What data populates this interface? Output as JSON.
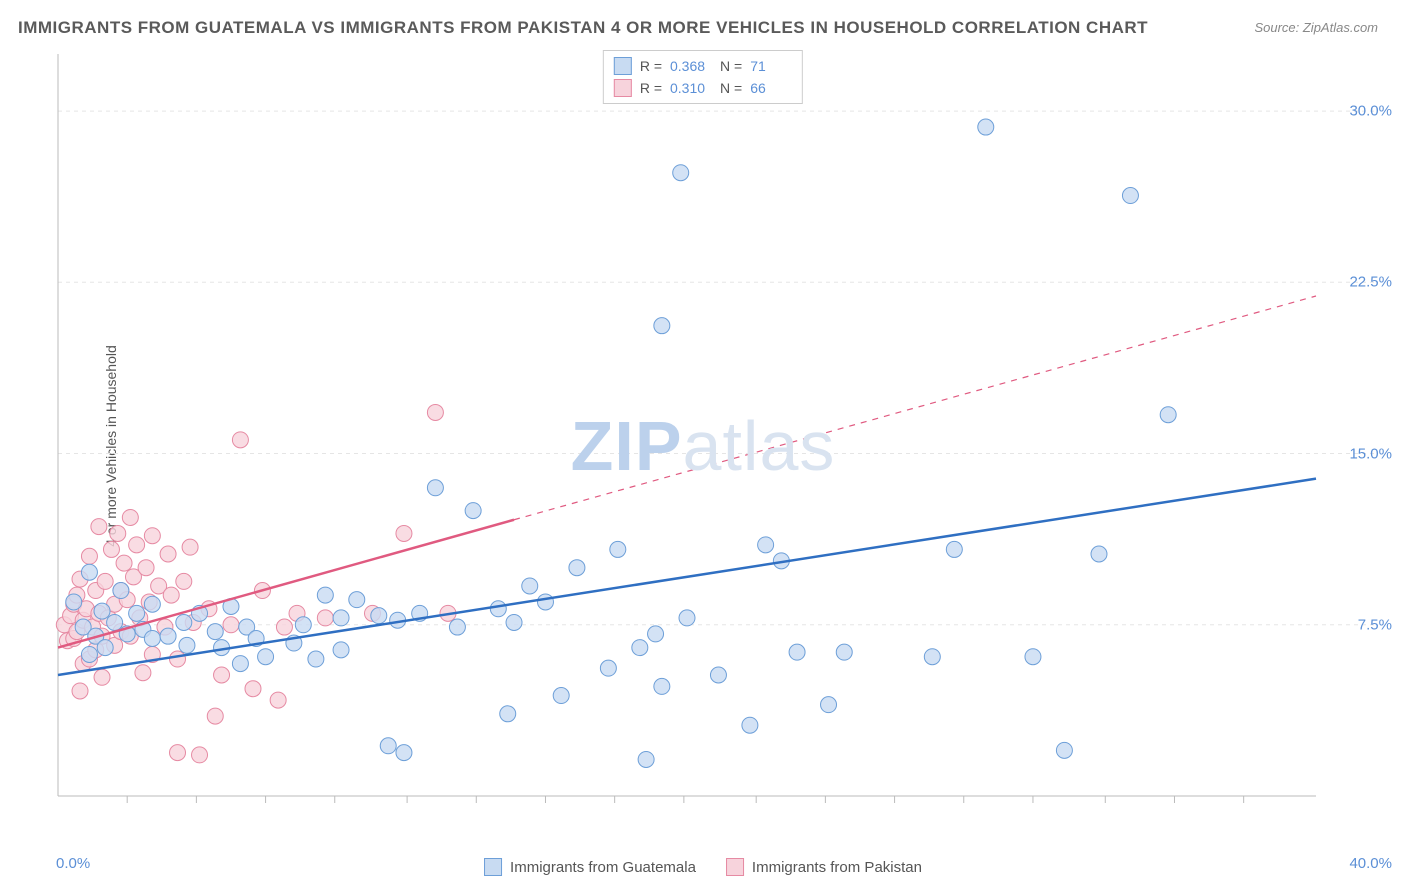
{
  "title": "IMMIGRANTS FROM GUATEMALA VS IMMIGRANTS FROM PAKISTAN 4 OR MORE VEHICLES IN HOUSEHOLD CORRELATION CHART",
  "source": "Source: ZipAtlas.com",
  "watermark_a": "ZIP",
  "watermark_b": "atlas",
  "ylabel": "4 or more Vehicles in Household",
  "chart": {
    "type": "scatter-correlation",
    "background_color": "#ffffff",
    "grid_color": "#e5e5e5",
    "axis_color": "#bbbbbb",
    "tick_color": "#bbbbbb",
    "xlim": [
      0,
      40
    ],
    "ylim": [
      0,
      32.5
    ],
    "xtick_labels": [
      {
        "v": 0.0,
        "label": "0.0%"
      },
      {
        "v": 40.0,
        "label": "40.0%"
      }
    ],
    "xticks_minor": [
      2.2,
      4.4,
      6.6,
      8.8,
      11.1,
      13.3,
      15.5,
      17.7,
      19.9,
      22.2,
      24.4,
      26.6,
      28.8,
      31.0,
      33.3,
      35.5,
      37.7
    ],
    "ytick_labels": [
      {
        "v": 7.5,
        "label": "7.5%"
      },
      {
        "v": 15.0,
        "label": "15.0%"
      },
      {
        "v": 22.5,
        "label": "22.5%"
      },
      {
        "v": 30.0,
        "label": "30.0%"
      }
    ],
    "label_color": "#5b8fd6",
    "label_fontsize": 15
  },
  "series": {
    "blue": {
      "label": "Immigrants from Guatemala",
      "R": "0.368",
      "N": "71",
      "marker_fill": "#c8dbf2",
      "marker_stroke": "#6d9fd8",
      "marker_radius": 8,
      "trend_color": "#2f6fc2",
      "trend_width": 2.5,
      "trend_dash_after_x": 40,
      "trend_start": {
        "x": 0,
        "y": 5.3
      },
      "trend_end": {
        "x": 40,
        "y": 13.9
      },
      "points": [
        [
          0.5,
          8.5
        ],
        [
          0.8,
          7.4
        ],
        [
          1.0,
          6.2
        ],
        [
          1.0,
          9.8
        ],
        [
          1.2,
          7.0
        ],
        [
          1.4,
          8.1
        ],
        [
          1.5,
          6.5
        ],
        [
          1.8,
          7.6
        ],
        [
          2.0,
          9.0
        ],
        [
          2.2,
          7.1
        ],
        [
          2.5,
          8.0
        ],
        [
          2.7,
          7.3
        ],
        [
          3.0,
          6.9
        ],
        [
          3.0,
          8.4
        ],
        [
          3.5,
          7.0
        ],
        [
          4.0,
          7.6
        ],
        [
          4.1,
          6.6
        ],
        [
          4.5,
          8.0
        ],
        [
          5.0,
          7.2
        ],
        [
          5.2,
          6.5
        ],
        [
          5.5,
          8.3
        ],
        [
          5.8,
          5.8
        ],
        [
          6.0,
          7.4
        ],
        [
          6.3,
          6.9
        ],
        [
          6.6,
          6.1
        ],
        [
          7.5,
          6.7
        ],
        [
          7.8,
          7.5
        ],
        [
          8.2,
          6.0
        ],
        [
          8.5,
          8.8
        ],
        [
          9.0,
          6.4
        ],
        [
          9.0,
          7.8
        ],
        [
          9.5,
          8.6
        ],
        [
          10.2,
          7.9
        ],
        [
          10.5,
          2.2
        ],
        [
          10.8,
          7.7
        ],
        [
          11.0,
          1.9
        ],
        [
          11.5,
          8.0
        ],
        [
          12.0,
          13.5
        ],
        [
          12.7,
          7.4
        ],
        [
          13.2,
          12.5
        ],
        [
          14.0,
          8.2
        ],
        [
          14.3,
          3.6
        ],
        [
          14.5,
          7.6
        ],
        [
          15.0,
          9.2
        ],
        [
          15.5,
          8.5
        ],
        [
          16.0,
          4.4
        ],
        [
          16.5,
          10.0
        ],
        [
          17.5,
          5.6
        ],
        [
          17.8,
          10.8
        ],
        [
          18.5,
          6.5
        ],
        [
          18.7,
          1.6
        ],
        [
          19.0,
          7.1
        ],
        [
          19.2,
          4.8
        ],
        [
          19.2,
          20.6
        ],
        [
          19.8,
          27.3
        ],
        [
          20.0,
          7.8
        ],
        [
          21.0,
          5.3
        ],
        [
          22.0,
          3.1
        ],
        [
          22.5,
          11.0
        ],
        [
          23.0,
          10.3
        ],
        [
          23.5,
          6.3
        ],
        [
          24.5,
          4.0
        ],
        [
          25.0,
          6.3
        ],
        [
          27.8,
          6.1
        ],
        [
          28.5,
          10.8
        ],
        [
          29.5,
          29.3
        ],
        [
          31.0,
          6.1
        ],
        [
          32.0,
          2.0
        ],
        [
          33.1,
          10.6
        ],
        [
          34.1,
          26.3
        ],
        [
          35.3,
          16.7
        ]
      ]
    },
    "pink": {
      "label": "Immigrants from Pakistan",
      "R": "0.310",
      "N": "66",
      "marker_fill": "#f7d3dc",
      "marker_stroke": "#e68aa3",
      "marker_radius": 8,
      "trend_color": "#e05a80",
      "trend_width": 2.5,
      "trend_solid_end_x": 14.5,
      "trend_dash_end_x": 40,
      "trend_start": {
        "x": 0,
        "y": 6.5
      },
      "trend_solid_end_y": 12.1,
      "trend_dash_end_y": 21.9,
      "points": [
        [
          0.2,
          7.5
        ],
        [
          0.3,
          6.8
        ],
        [
          0.4,
          7.9
        ],
        [
          0.5,
          8.4
        ],
        [
          0.5,
          6.9
        ],
        [
          0.6,
          7.2
        ],
        [
          0.6,
          8.8
        ],
        [
          0.7,
          4.6
        ],
        [
          0.7,
          9.5
        ],
        [
          0.8,
          7.7
        ],
        [
          0.8,
          5.8
        ],
        [
          0.9,
          8.2
        ],
        [
          1.0,
          6.0
        ],
        [
          1.0,
          10.5
        ],
        [
          1.1,
          7.4
        ],
        [
          1.2,
          9.0
        ],
        [
          1.2,
          6.4
        ],
        [
          1.3,
          11.8
        ],
        [
          1.3,
          8.0
        ],
        [
          1.4,
          7.0
        ],
        [
          1.4,
          5.2
        ],
        [
          1.5,
          9.4
        ],
        [
          1.6,
          7.8
        ],
        [
          1.7,
          10.8
        ],
        [
          1.8,
          8.4
        ],
        [
          1.8,
          6.6
        ],
        [
          1.9,
          11.5
        ],
        [
          2.0,
          9.0
        ],
        [
          2.0,
          7.2
        ],
        [
          2.1,
          10.2
        ],
        [
          2.2,
          8.6
        ],
        [
          2.3,
          12.2
        ],
        [
          2.3,
          7.0
        ],
        [
          2.4,
          9.6
        ],
        [
          2.5,
          11.0
        ],
        [
          2.6,
          7.8
        ],
        [
          2.7,
          5.4
        ],
        [
          2.8,
          10.0
        ],
        [
          2.9,
          8.5
        ],
        [
          3.0,
          6.2
        ],
        [
          3.0,
          11.4
        ],
        [
          3.2,
          9.2
        ],
        [
          3.4,
          7.4
        ],
        [
          3.5,
          10.6
        ],
        [
          3.6,
          8.8
        ],
        [
          3.8,
          6.0
        ],
        [
          3.8,
          1.9
        ],
        [
          4.0,
          9.4
        ],
        [
          4.2,
          10.9
        ],
        [
          4.3,
          7.6
        ],
        [
          4.5,
          1.8
        ],
        [
          4.8,
          8.2
        ],
        [
          5.0,
          3.5
        ],
        [
          5.2,
          5.3
        ],
        [
          5.5,
          7.5
        ],
        [
          5.8,
          15.6
        ],
        [
          6.2,
          4.7
        ],
        [
          6.5,
          9.0
        ],
        [
          7.0,
          4.2
        ],
        [
          7.2,
          7.4
        ],
        [
          7.6,
          8.0
        ],
        [
          8.5,
          7.8
        ],
        [
          10.0,
          8.0
        ],
        [
          11.0,
          11.5
        ],
        [
          12.0,
          16.8
        ],
        [
          12.4,
          8.0
        ]
      ]
    }
  },
  "legend_top_text": {
    "r_lbl": "R =",
    "n_lbl": "N ="
  },
  "legend_box_colors": {
    "blue_fill": "#c8dbf2",
    "blue_stroke": "#6d9fd8",
    "pink_fill": "#f7d3dc",
    "pink_stroke": "#e68aa3"
  }
}
